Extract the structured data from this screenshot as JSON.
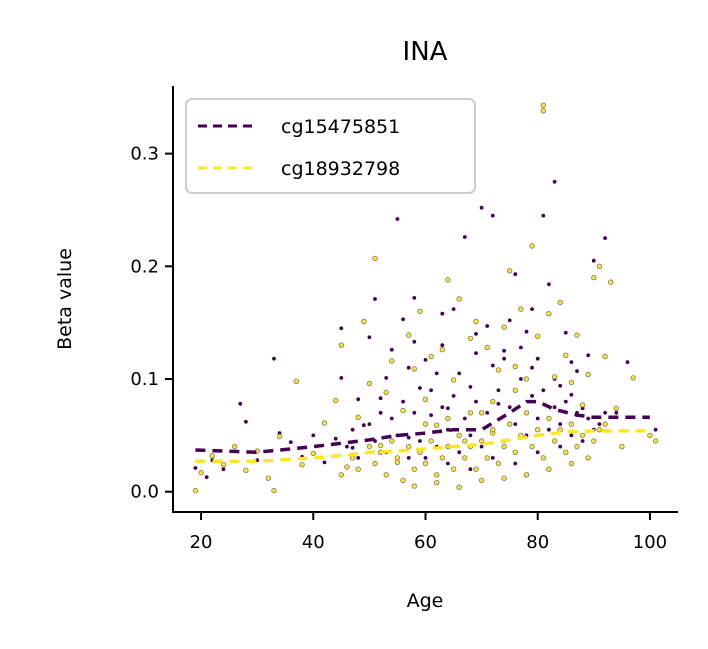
{
  "chart_data": {
    "type": "scatter",
    "title": "INA",
    "xlabel": "Age",
    "ylabel": "Beta value",
    "xlim": [
      15,
      105
    ],
    "ylim": [
      -0.018,
      0.36
    ],
    "xticks": [
      20,
      40,
      60,
      80,
      100
    ],
    "xtick_labels": [
      "20",
      "40",
      "60",
      "80",
      "100"
    ],
    "yticks": [
      0.0,
      0.1,
      0.2,
      0.3
    ],
    "ytick_labels": [
      "0.0",
      "0.1",
      "0.2",
      "0.3"
    ],
    "grid": false,
    "legend_position": "top-left",
    "series": [
      {
        "name": "cg15475851",
        "color": "#440154",
        "points": [
          [
            19,
            0.021
          ],
          [
            21,
            0.013
          ],
          [
            22,
            0.028
          ],
          [
            24,
            0.02
          ],
          [
            27,
            0.078
          ],
          [
            28,
            0.062
          ],
          [
            30,
            0.028
          ],
          [
            33,
            0.118
          ],
          [
            34,
            0.052
          ],
          [
            36,
            0.044
          ],
          [
            38,
            0.031
          ],
          [
            40,
            0.05
          ],
          [
            42,
            0.026
          ],
          [
            44,
            0.047
          ],
          [
            45,
            0.101
          ],
          [
            45,
            0.145
          ],
          [
            47,
            0.039
          ],
          [
            48,
            0.082
          ],
          [
            49,
            0.059
          ],
          [
            50,
            0.137
          ],
          [
            51,
            0.171
          ],
          [
            52,
            0.083
          ],
          [
            53,
            0.101
          ],
          [
            54,
            0.126
          ],
          [
            55,
            0.242
          ],
          [
            56,
            0.153
          ],
          [
            57,
            0.048
          ],
          [
            58,
            0.133
          ],
          [
            58,
            0.172
          ],
          [
            59,
            0.092
          ],
          [
            60,
            0.117
          ],
          [
            61,
            0.068
          ],
          [
            62,
            0.105
          ],
          [
            63,
            0.158
          ],
          [
            64,
            0.074
          ],
          [
            65,
            0.162
          ],
          [
            66,
            0.105
          ],
          [
            67,
            0.226
          ],
          [
            68,
            0.093
          ],
          [
            69,
            0.123
          ],
          [
            70,
            0.252
          ],
          [
            71,
            0.147
          ],
          [
            72,
            0.112
          ],
          [
            72,
            0.245
          ],
          [
            73,
            0.078
          ],
          [
            74,
            0.118
          ],
          [
            75,
            0.152
          ],
          [
            76,
            0.193
          ],
          [
            77,
            0.128
          ],
          [
            78,
            0.142
          ],
          [
            79,
            0.162
          ],
          [
            80,
            0.118
          ],
          [
            81,
            0.245
          ],
          [
            82,
            0.184
          ],
          [
            83,
            0.275
          ],
          [
            84,
            0.094
          ],
          [
            85,
            0.141
          ],
          [
            86,
            0.086
          ],
          [
            87,
            0.107
          ],
          [
            88,
            0.074
          ],
          [
            89,
            0.121
          ],
          [
            90,
            0.205
          ],
          [
            92,
            0.225
          ],
          [
            94,
            0.07
          ],
          [
            96,
            0.115
          ],
          [
            101,
            0.055
          ],
          [
            46,
            0.04
          ],
          [
            47,
            0.055
          ],
          [
            48,
            0.03
          ],
          [
            50,
            0.06
          ],
          [
            51,
            0.045
          ],
          [
            52,
            0.07
          ],
          [
            53,
            0.035
          ],
          [
            54,
            0.065
          ],
          [
            55,
            0.05
          ],
          [
            56,
            0.08
          ],
          [
            57,
            0.03
          ],
          [
            58,
            0.07
          ],
          [
            59,
            0.045
          ],
          [
            60,
            0.06
          ],
          [
            61,
            0.09
          ],
          [
            62,
            0.04
          ],
          [
            63,
            0.075
          ],
          [
            64,
            0.055
          ],
          [
            65,
            0.085
          ],
          [
            66,
            0.035
          ],
          [
            67,
            0.065
          ],
          [
            68,
            0.05
          ],
          [
            69,
            0.08
          ],
          [
            70,
            0.04
          ],
          [
            71,
            0.07
          ],
          [
            72,
            0.055
          ],
          [
            73,
            0.09
          ],
          [
            74,
            0.045
          ],
          [
            75,
            0.075
          ],
          [
            76,
            0.06
          ],
          [
            77,
            0.1
          ],
          [
            78,
            0.05
          ],
          [
            79,
            0.085
          ],
          [
            80,
            0.065
          ],
          [
            81,
            0.09
          ],
          [
            82,
            0.055
          ],
          [
            83,
            0.075
          ],
          [
            84,
            0.06
          ],
          [
            85,
            0.08
          ],
          [
            86,
            0.05
          ],
          [
            87,
            0.07
          ],
          [
            88,
            0.045
          ],
          [
            89,
            0.065
          ],
          [
            90,
            0.055
          ],
          [
            91,
            0.06
          ],
          [
            92,
            0.07
          ],
          [
            60,
            0.03
          ],
          [
            64,
            0.025
          ],
          [
            68,
            0.02
          ],
          [
            72,
            0.03
          ],
          [
            76,
            0.025
          ],
          [
            80,
            0.035
          ],
          [
            84,
            0.04
          ],
          [
            57,
            0.11
          ],
          [
            63,
            0.13
          ],
          [
            69,
            0.14
          ],
          [
            74,
            0.125
          ],
          [
            79,
            0.11
          ],
          [
            83,
            0.1
          ],
          [
            86,
            0.115
          ]
        ],
        "trend": [
          [
            19,
            0.037
          ],
          [
            30,
            0.035
          ],
          [
            40,
            0.04
          ],
          [
            50,
            0.046
          ],
          [
            55,
            0.05
          ],
          [
            60,
            0.052
          ],
          [
            65,
            0.055
          ],
          [
            70,
            0.055
          ],
          [
            75,
            0.07
          ],
          [
            78,
            0.08
          ],
          [
            80,
            0.08
          ],
          [
            83,
            0.073
          ],
          [
            87,
            0.068
          ],
          [
            90,
            0.066
          ],
          [
            100,
            0.066
          ]
        ]
      },
      {
        "name": "cg18932798",
        "color": "#fde725",
        "points": [
          [
            19,
            0.001
          ],
          [
            20,
            0.017
          ],
          [
            22,
            0.032
          ],
          [
            24,
            0.024
          ],
          [
            26,
            0.04
          ],
          [
            28,
            0.019
          ],
          [
            30,
            0.036
          ],
          [
            32,
            0.012
          ],
          [
            33,
            0.001
          ],
          [
            34,
            0.049
          ],
          [
            37,
            0.098
          ],
          [
            38,
            0.024
          ],
          [
            40,
            0.034
          ],
          [
            42,
            0.061
          ],
          [
            44,
            0.081
          ],
          [
            45,
            0.13
          ],
          [
            46,
            0.022
          ],
          [
            48,
            0.066
          ],
          [
            49,
            0.151
          ],
          [
            50,
            0.096
          ],
          [
            51,
            0.207
          ],
          [
            52,
            0.041
          ],
          [
            53,
            0.088
          ],
          [
            54,
            0.116
          ],
          [
            55,
            0.026
          ],
          [
            56,
            0.072
          ],
          [
            57,
            0.139
          ],
          [
            58,
            0.109
          ],
          [
            59,
            0.16
          ],
          [
            60,
            0.082
          ],
          [
            61,
            0.12
          ],
          [
            62,
            0.059
          ],
          [
            63,
            0.126
          ],
          [
            64,
            0.188
          ],
          [
            65,
            0.099
          ],
          [
            66,
            0.171
          ],
          [
            67,
            0.045
          ],
          [
            68,
            0.136
          ],
          [
            69,
            0.151
          ],
          [
            70,
            0.07
          ],
          [
            71,
            0.128
          ],
          [
            72,
            0.052
          ],
          [
            73,
            0.108
          ],
          [
            74,
            0.146
          ],
          [
            75,
            0.196
          ],
          [
            76,
            0.111
          ],
          [
            77,
            0.162
          ],
          [
            78,
            0.1
          ],
          [
            79,
            0.218
          ],
          [
            80,
            0.138
          ],
          [
            81,
            0.343
          ],
          [
            81,
            0.338
          ],
          [
            82,
            0.158
          ],
          [
            83,
            0.102
          ],
          [
            84,
            0.168
          ],
          [
            85,
            0.121
          ],
          [
            86,
            0.097
          ],
          [
            87,
            0.139
          ],
          [
            88,
            0.077
          ],
          [
            89,
            0.104
          ],
          [
            90,
            0.19
          ],
          [
            91,
            0.2
          ],
          [
            92,
            0.12
          ],
          [
            93,
            0.186
          ],
          [
            94,
            0.074
          ],
          [
            97,
            0.101
          ],
          [
            101,
            0.045
          ],
          [
            45,
            0.015
          ],
          [
            47,
            0.03
          ],
          [
            48,
            0.02
          ],
          [
            50,
            0.04
          ],
          [
            51,
            0.025
          ],
          [
            52,
            0.035
          ],
          [
            53,
            0.015
          ],
          [
            54,
            0.045
          ],
          [
            55,
            0.03
          ],
          [
            56,
            0.01
          ],
          [
            57,
            0.04
          ],
          [
            58,
            0.02
          ],
          [
            59,
            0.035
          ],
          [
            60,
            0.025
          ],
          [
            61,
            0.045
          ],
          [
            62,
            0.015
          ],
          [
            63,
            0.03
          ],
          [
            64,
            0.04
          ],
          [
            65,
            0.02
          ],
          [
            66,
            0.05
          ],
          [
            67,
            0.03
          ],
          [
            68,
            0.04
          ],
          [
            69,
            0.02
          ],
          [
            70,
            0.045
          ],
          [
            71,
            0.03
          ],
          [
            72,
            0.055
          ],
          [
            73,
            0.025
          ],
          [
            74,
            0.04
          ],
          [
            75,
            0.06
          ],
          [
            76,
            0.035
          ],
          [
            77,
            0.05
          ],
          [
            78,
            0.07
          ],
          [
            79,
            0.04
          ],
          [
            80,
            0.055
          ],
          [
            81,
            0.03
          ],
          [
            82,
            0.065
          ],
          [
            83,
            0.045
          ],
          [
            84,
            0.055
          ],
          [
            85,
            0.035
          ],
          [
            86,
            0.06
          ],
          [
            87,
            0.04
          ],
          [
            88,
            0.05
          ],
          [
            89,
            0.03
          ],
          [
            90,
            0.045
          ],
          [
            91,
            0.055
          ],
          [
            92,
            0.06
          ],
          [
            95,
            0.04
          ],
          [
            100,
            0.05
          ],
          [
            58,
            0.005
          ],
          [
            62,
            0.008
          ],
          [
            66,
            0.004
          ],
          [
            70,
            0.01
          ],
          [
            74,
            0.012
          ],
          [
            78,
            0.015
          ],
          [
            82,
            0.02
          ],
          [
            86,
            0.025
          ],
          [
            60,
            0.06
          ],
          [
            64,
            0.065
          ],
          [
            68,
            0.07
          ],
          [
            72,
            0.08
          ],
          [
            76,
            0.09
          ]
        ],
        "trend": [
          [
            19,
            0.027
          ],
          [
            30,
            0.027
          ],
          [
            40,
            0.03
          ],
          [
            45,
            0.032
          ],
          [
            50,
            0.035
          ],
          [
            55,
            0.036
          ],
          [
            60,
            0.038
          ],
          [
            65,
            0.04
          ],
          [
            70,
            0.042
          ],
          [
            75,
            0.046
          ],
          [
            80,
            0.05
          ],
          [
            85,
            0.053
          ],
          [
            90,
            0.054
          ],
          [
            100,
            0.054
          ]
        ]
      }
    ]
  }
}
